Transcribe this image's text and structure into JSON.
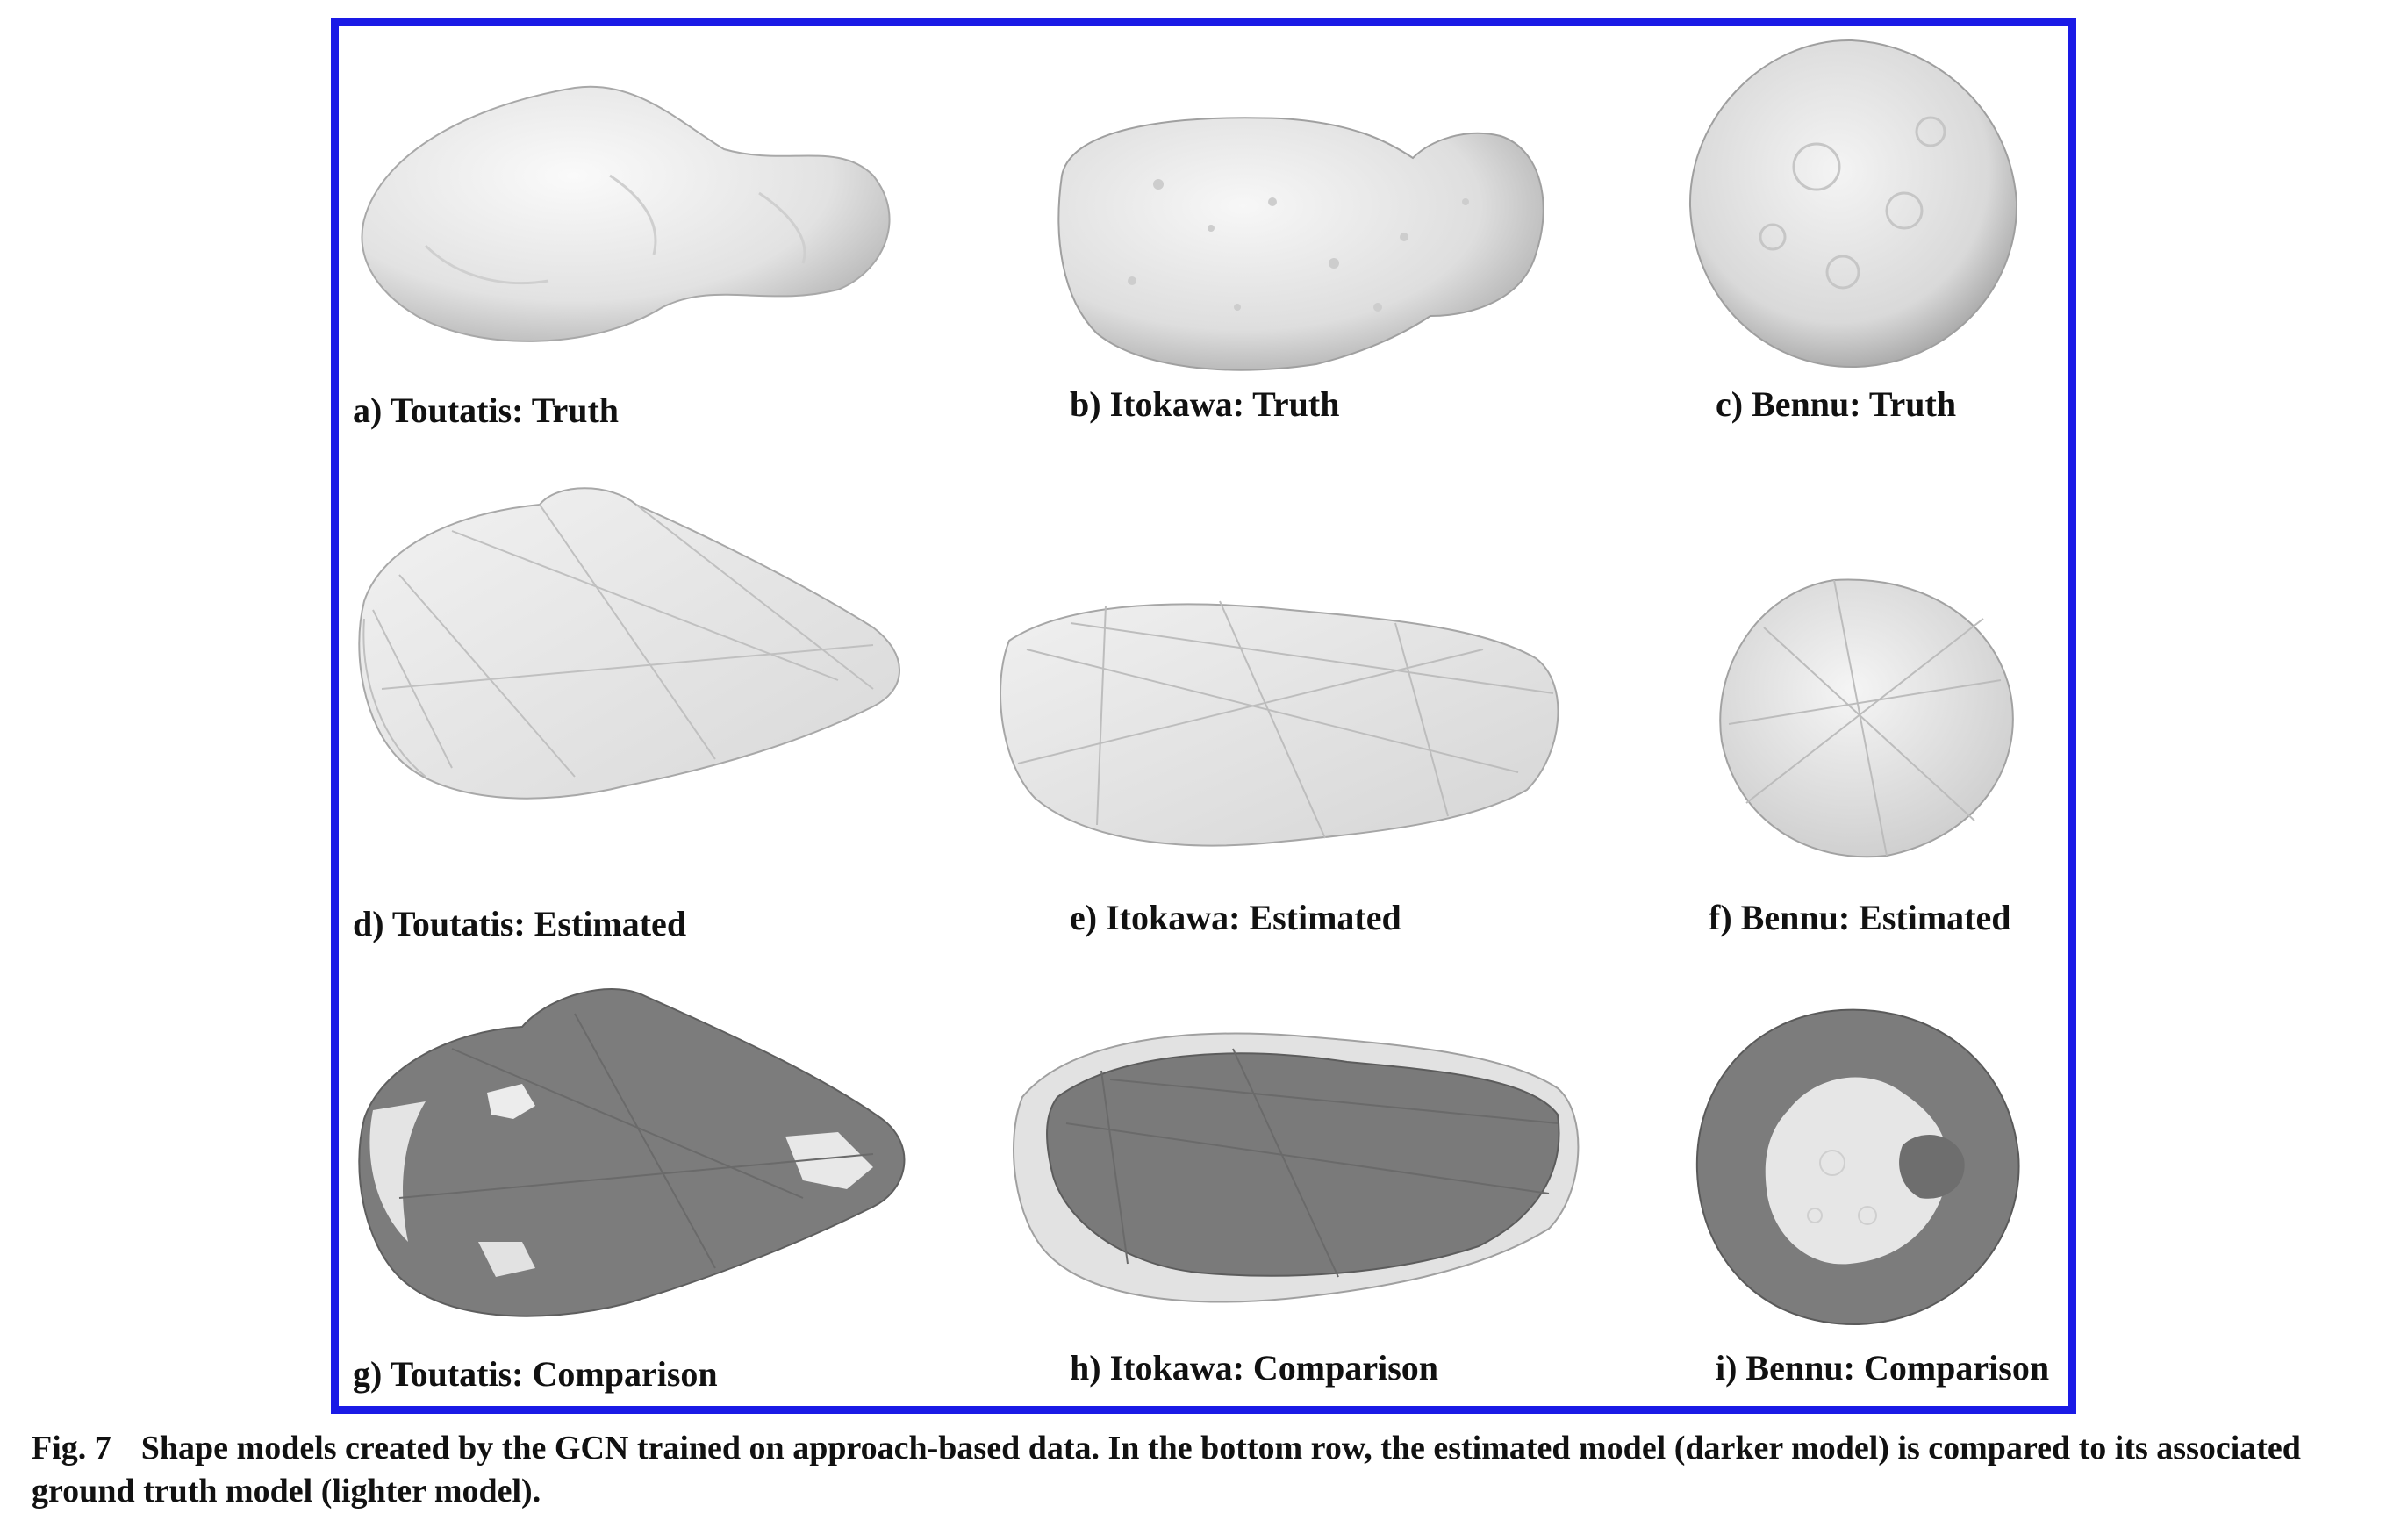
{
  "figure": {
    "frame_color": "#1a1ae6",
    "panels": [
      {
        "label": "a) Toutatis: Truth",
        "asteroid": "Toutatis",
        "view": "truth"
      },
      {
        "label": "b) Itokawa: Truth",
        "asteroid": "Itokawa",
        "view": "truth"
      },
      {
        "label": "c) Bennu: Truth",
        "asteroid": "Bennu",
        "view": "truth"
      },
      {
        "label": "d) Toutatis: Estimated",
        "asteroid": "Toutatis",
        "view": "estimated"
      },
      {
        "label": "e) Itokawa: Estimated",
        "asteroid": "Itokawa",
        "view": "estimated"
      },
      {
        "label": "f) Bennu: Estimated",
        "asteroid": "Bennu",
        "view": "estimated"
      },
      {
        "label": "g) Toutatis: Comparison",
        "asteroid": "Toutatis",
        "view": "comparison"
      },
      {
        "label": "h) Itokawa: Comparison",
        "asteroid": "Itokawa",
        "view": "comparison"
      },
      {
        "label": "i) Bennu: Comparison",
        "asteroid": "Bennu",
        "view": "comparison"
      }
    ]
  },
  "caption": {
    "number": "Fig. 7",
    "text": "Shape models created by the GCN trained on approach-based data. In the bottom row, the estimated model (darker model) is compared to its associated ground truth model (lighter model)."
  },
  "colors": {
    "truth_fill": "#e6e6e6",
    "estimated_fill": "#ededed",
    "comparison_dark": "#7a7a7a",
    "outline": "#9a9a9a"
  }
}
